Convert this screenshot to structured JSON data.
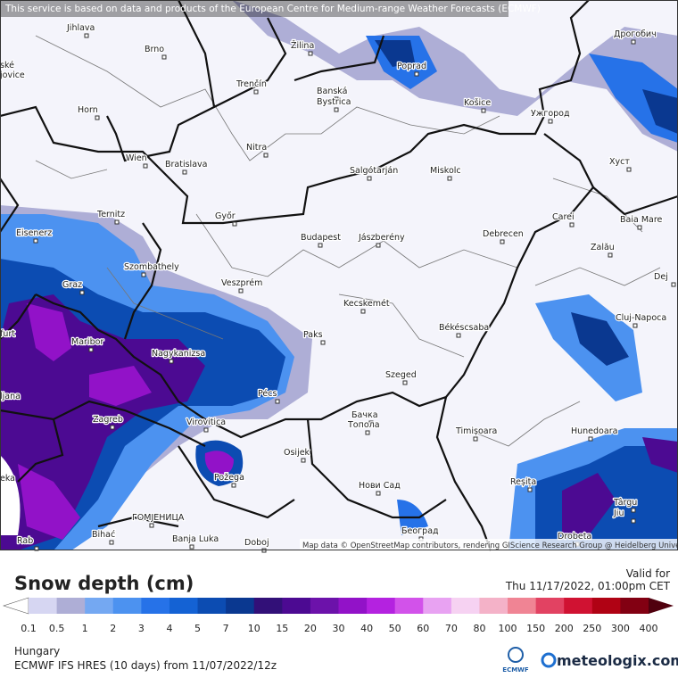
{
  "header": {
    "notice": "This service is based on data and products of the European Centre for Medium-range Weather Forecasts (ECMWF)"
  },
  "map": {
    "attribution": "Map data © OpenStreetMap contributors, rendering GIScience Research Group @ Heidelberg University",
    "cities": [
      "Jihlava",
      "Brno",
      "Žilina",
      "Poprad",
      "Дрогобич",
      "ské",
      "jovice",
      "Trenčín",
      "Banská",
      "Bystrica",
      "Košice",
      "Ужгород",
      "Horn",
      "Nitra",
      "Wien",
      "Bratislava",
      "Salgótarján",
      "Miskolc",
      "Хуст",
      "Ternitz",
      "Győr",
      "Carei",
      "Baia Mare",
      "Eisenerz",
      "Budapest",
      "Jászberény",
      "Debrecen",
      "Szombathely",
      "Zalău",
      "Graz",
      "Veszprém",
      "Dej",
      "Kecskemét",
      "Cluj-Napoca",
      "furt",
      "Paks",
      "Békéscsaba",
      "Maribor",
      "Nagykanizsa",
      "ljana",
      "Pécs",
      "Szeged",
      "Zagreb",
      "Virovitica",
      "Бачка",
      "Топола",
      "Timișoara",
      "Hunedoara",
      "Osijek",
      "eka",
      "Požega",
      "Нови Сад",
      "Reșița",
      "Târgu",
      "Jiu",
      "ГОМЈЕНИЦА",
      "Banja Luka",
      "Doboj",
      "Београд",
      "Drobeta",
      "Bihać",
      "Rab"
    ]
  },
  "legend": {
    "title": "Snow depth (cm)",
    "valid_label": "Valid for",
    "valid_time": "Thu 11/17/2022, 01:00pm CET",
    "labels": [
      0.1,
      0.5,
      1,
      2,
      3,
      4,
      5,
      7,
      10,
      15,
      20,
      30,
      40,
      50,
      60,
      70,
      80,
      100,
      150,
      200,
      250,
      300,
      400
    ],
    "colors": [
      "#d6d6f2",
      "#aeaed6",
      "#74a8f2",
      "#4c92f0",
      "#2672e8",
      "#1462d4",
      "#0c4cb2",
      "#0a3890",
      "#321078",
      "#4c0a92",
      "#6c12aa",
      "#9212c8",
      "#b422e0",
      "#d252ea",
      "#e8a2f2",
      "#f6d2f2",
      "#f4b2c8",
      "#f08494",
      "#e24262",
      "#d01232",
      "#b00214",
      "#820012"
    ],
    "under_color": "#ffffff",
    "over_color": "#50000e"
  },
  "footer": {
    "region": "Hungary",
    "model": "ECMWF IFS HRES (10 days) from 11/07/2022/12z",
    "logo_small": "ECMWF",
    "brand": "meteologix.com"
  }
}
